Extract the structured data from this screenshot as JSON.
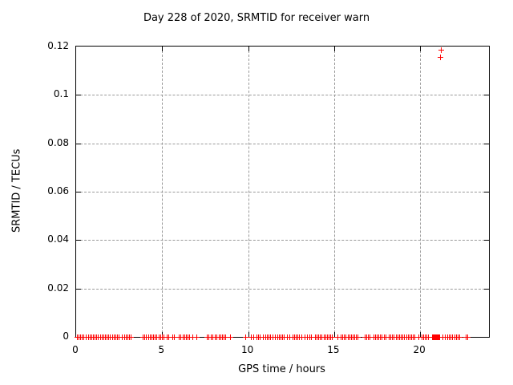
{
  "chart_data": {
    "type": "scatter",
    "title": "Day 228 of 2020, SRMTID for receiver warn",
    "xlabel": "GPS time / hours",
    "ylabel": "SRMTID / TECUs",
    "xlim": [
      0,
      24
    ],
    "ylim": [
      0,
      0.12
    ],
    "x_ticks": [
      0,
      5,
      10,
      15,
      20
    ],
    "x_tick_labels": [
      "0",
      "5",
      "10",
      "15",
      "20"
    ],
    "y_ticks": [
      0,
      0.02,
      0.04,
      0.06,
      0.08,
      0.1,
      0.12
    ],
    "y_tick_labels": [
      "0",
      "0.02",
      "0.04",
      "0.06",
      "0.08",
      "0.1",
      "0.12"
    ],
    "grid": true,
    "legend_position": "none",
    "marker": "plus",
    "marker_color": "#ff0000",
    "axis_color": "#000000",
    "grid_color": "#9a9a9a",
    "series": [
      {
        "name": "SRMTID",
        "baseline_y": 0,
        "baseline_x": [
          0.05,
          0.15,
          0.25,
          0.35,
          0.45,
          0.6,
          0.7,
          0.8,
          0.9,
          1.0,
          1.1,
          1.2,
          1.3,
          1.4,
          1.5,
          1.6,
          1.7,
          1.8,
          1.9,
          2.0,
          2.1,
          2.2,
          2.3,
          2.4,
          2.5,
          2.7,
          2.8,
          2.9,
          3.0,
          3.1,
          3.2,
          3.9,
          4.0,
          4.1,
          4.2,
          4.3,
          4.4,
          4.5,
          4.6,
          4.7,
          4.8,
          4.9,
          5.0,
          5.1,
          5.3,
          5.4,
          5.6,
          5.7,
          6.0,
          6.1,
          6.2,
          6.3,
          6.4,
          6.5,
          6.6,
          6.8,
          7.0,
          7.6,
          7.7,
          7.85,
          7.95,
          8.1,
          8.2,
          8.3,
          8.4,
          8.5,
          8.6,
          8.7,
          8.95,
          9.85,
          10.2,
          10.3,
          10.5,
          10.6,
          10.7,
          10.9,
          11.0,
          11.1,
          11.2,
          11.3,
          11.45,
          11.6,
          11.7,
          11.8,
          11.9,
          12.0,
          12.1,
          12.3,
          12.4,
          12.6,
          12.7,
          12.8,
          12.9,
          13.0,
          13.1,
          13.3,
          13.45,
          13.6,
          13.7,
          13.9,
          14.0,
          14.1,
          14.2,
          14.3,
          14.4,
          14.5,
          14.6,
          14.7,
          14.8,
          14.9,
          15.2,
          15.4,
          15.5,
          15.6,
          15.7,
          15.8,
          15.9,
          16.0,
          16.1,
          16.2,
          16.3,
          16.4,
          16.8,
          16.9,
          17.0,
          17.1,
          17.3,
          17.4,
          17.5,
          17.6,
          17.7,
          17.8,
          17.9,
          18.0,
          18.2,
          18.3,
          18.4,
          18.5,
          18.6,
          18.7,
          18.8,
          18.9,
          19.0,
          19.1,
          19.2,
          19.3,
          19.4,
          19.5,
          19.6,
          19.7,
          19.9,
          20.1,
          20.2,
          20.3,
          20.4,
          20.5,
          20.7,
          20.75,
          20.8,
          20.85,
          20.9,
          20.95,
          21.0,
          21.05,
          21.1,
          21.15,
          21.3,
          21.45,
          21.6,
          21.7,
          21.8,
          21.9,
          22.0,
          22.1,
          22.2,
          22.3,
          22.65,
          22.75
        ],
        "outlier_points": [
          [
            21.21,
            0.1185
          ],
          [
            21.16,
            0.1155
          ]
        ]
      }
    ]
  }
}
